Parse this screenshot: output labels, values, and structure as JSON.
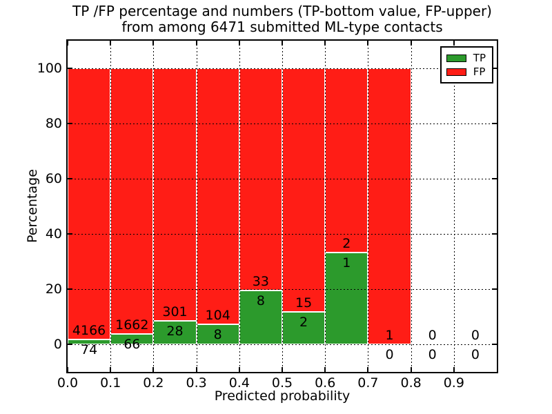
{
  "chart_data": {
    "type": "bar",
    "variant": "stacked-percentage-histogram",
    "title": "TP /FP percentage and numbers (TP-bottom value, FP-upper)\nfrom among 6471 submitted ML-type contacts",
    "title_lines": [
      "TP /FP percentage and numbers (TP-bottom value, FP-upper)",
      "from among 6471 submitted ML-type contacts"
    ],
    "xlabel": "Predicted probability",
    "ylabel": "Percentage",
    "total_submitted_contacts": 6471,
    "xlim": [
      0.0,
      1.0
    ],
    "ylim": [
      -10,
      110
    ],
    "xticks": [
      "0.0",
      "0.1",
      "0.2",
      "0.3",
      "0.4",
      "0.5",
      "0.6",
      "0.7",
      "0.8",
      "0.9"
    ],
    "yticks": [
      "0",
      "20",
      "40",
      "60",
      "80",
      "100"
    ],
    "grid": true,
    "grid_style": "dotted",
    "bar_width": 0.1,
    "categories": [
      "0.0-0.1",
      "0.1-0.2",
      "0.2-0.3",
      "0.3-0.4",
      "0.4-0.5",
      "0.5-0.6",
      "0.6-0.7",
      "0.7-0.8",
      "0.8-0.9",
      "0.9-1.0"
    ],
    "bins": [
      {
        "x_start": 0.0,
        "x_end": 0.1,
        "tp": 74,
        "fp": 4166
      },
      {
        "x_start": 0.1,
        "x_end": 0.2,
        "tp": 66,
        "fp": 1662
      },
      {
        "x_start": 0.2,
        "x_end": 0.3,
        "tp": 28,
        "fp": 301
      },
      {
        "x_start": 0.3,
        "x_end": 0.4,
        "tp": 8,
        "fp": 104
      },
      {
        "x_start": 0.4,
        "x_end": 0.5,
        "tp": 8,
        "fp": 33
      },
      {
        "x_start": 0.5,
        "x_end": 0.6,
        "tp": 2,
        "fp": 15
      },
      {
        "x_start": 0.6,
        "x_end": 0.7,
        "tp": 1,
        "fp": 2
      },
      {
        "x_start": 0.7,
        "x_end": 0.8,
        "tp": 0,
        "fp": 1
      },
      {
        "x_start": 0.8,
        "x_end": 0.9,
        "tp": 0,
        "fp": 0
      },
      {
        "x_start": 0.9,
        "x_end": 1.0,
        "tp": 0,
        "fp": 0
      }
    ],
    "legend": {
      "position": "upper right",
      "entries": [
        {
          "label": "TP",
          "color": "#2c9a2c"
        },
        {
          "label": "FP",
          "color": "#ff1d16"
        }
      ]
    },
    "colors": {
      "tp": "#2c9a2c",
      "fp": "#ff1d16",
      "bar_edge": "#ffffff",
      "grid": "#000000",
      "background": "#ffffff",
      "text": "#000000"
    }
  }
}
